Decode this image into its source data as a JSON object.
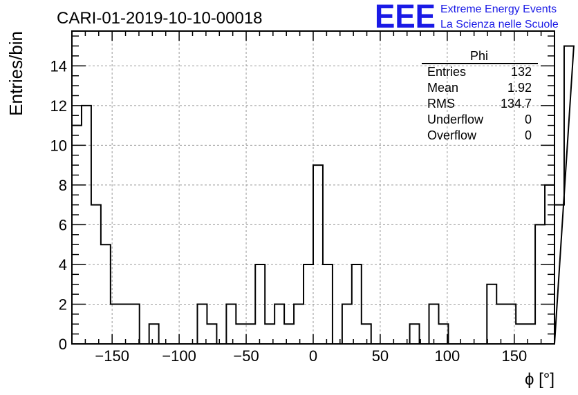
{
  "title": "CARI-01-2019-10-10-00018",
  "logo": {
    "mark": "EEE",
    "line1": "Extreme Energy Events",
    "line2": "La Scienza nelle Scuole",
    "color": "#1a1ae6"
  },
  "stats": {
    "name": "Phi",
    "rows": [
      {
        "label": "Entries",
        "value": "132"
      },
      {
        "label": "Mean",
        "value": "1.92"
      },
      {
        "label": "RMS",
        "value": "134.7"
      },
      {
        "label": "Underflow",
        "value": "0"
      },
      {
        "label": "Overflow",
        "value": "0"
      }
    ]
  },
  "chart_data": {
    "type": "histogram",
    "title": "CARI-01-2019-10-10-00018",
    "xlabel": "ϕ [°]",
    "ylabel": "Entries/bin",
    "xlim": [
      -180,
      180
    ],
    "ylim": [
      0,
      15.75
    ],
    "bin_width": 7.2,
    "x_ticks": [
      -150,
      -100,
      -50,
      0,
      50,
      100,
      150
    ],
    "x_tick_labels": [
      "−150",
      "−100",
      "−50",
      "0",
      "50",
      "100",
      "150"
    ],
    "y_ticks": [
      0,
      2,
      4,
      6,
      8,
      10,
      12,
      14
    ],
    "y_tick_labels": [
      "0",
      "2",
      "4",
      "6",
      "8",
      "10",
      "12",
      "14"
    ],
    "grid": true,
    "line_color": "#000000",
    "values": [
      11,
      12,
      7,
      5,
      2,
      2,
      2,
      0,
      1,
      0,
      0,
      0,
      0,
      2,
      1,
      0,
      2,
      1,
      1,
      4,
      1,
      2,
      1,
      2,
      4,
      9,
      4,
      0,
      2,
      4,
      1,
      0,
      0,
      0,
      0,
      1,
      0,
      2,
      1,
      0,
      0,
      0,
      0,
      3,
      2,
      2,
      1,
      1,
      6,
      8,
      7,
      15
    ]
  }
}
